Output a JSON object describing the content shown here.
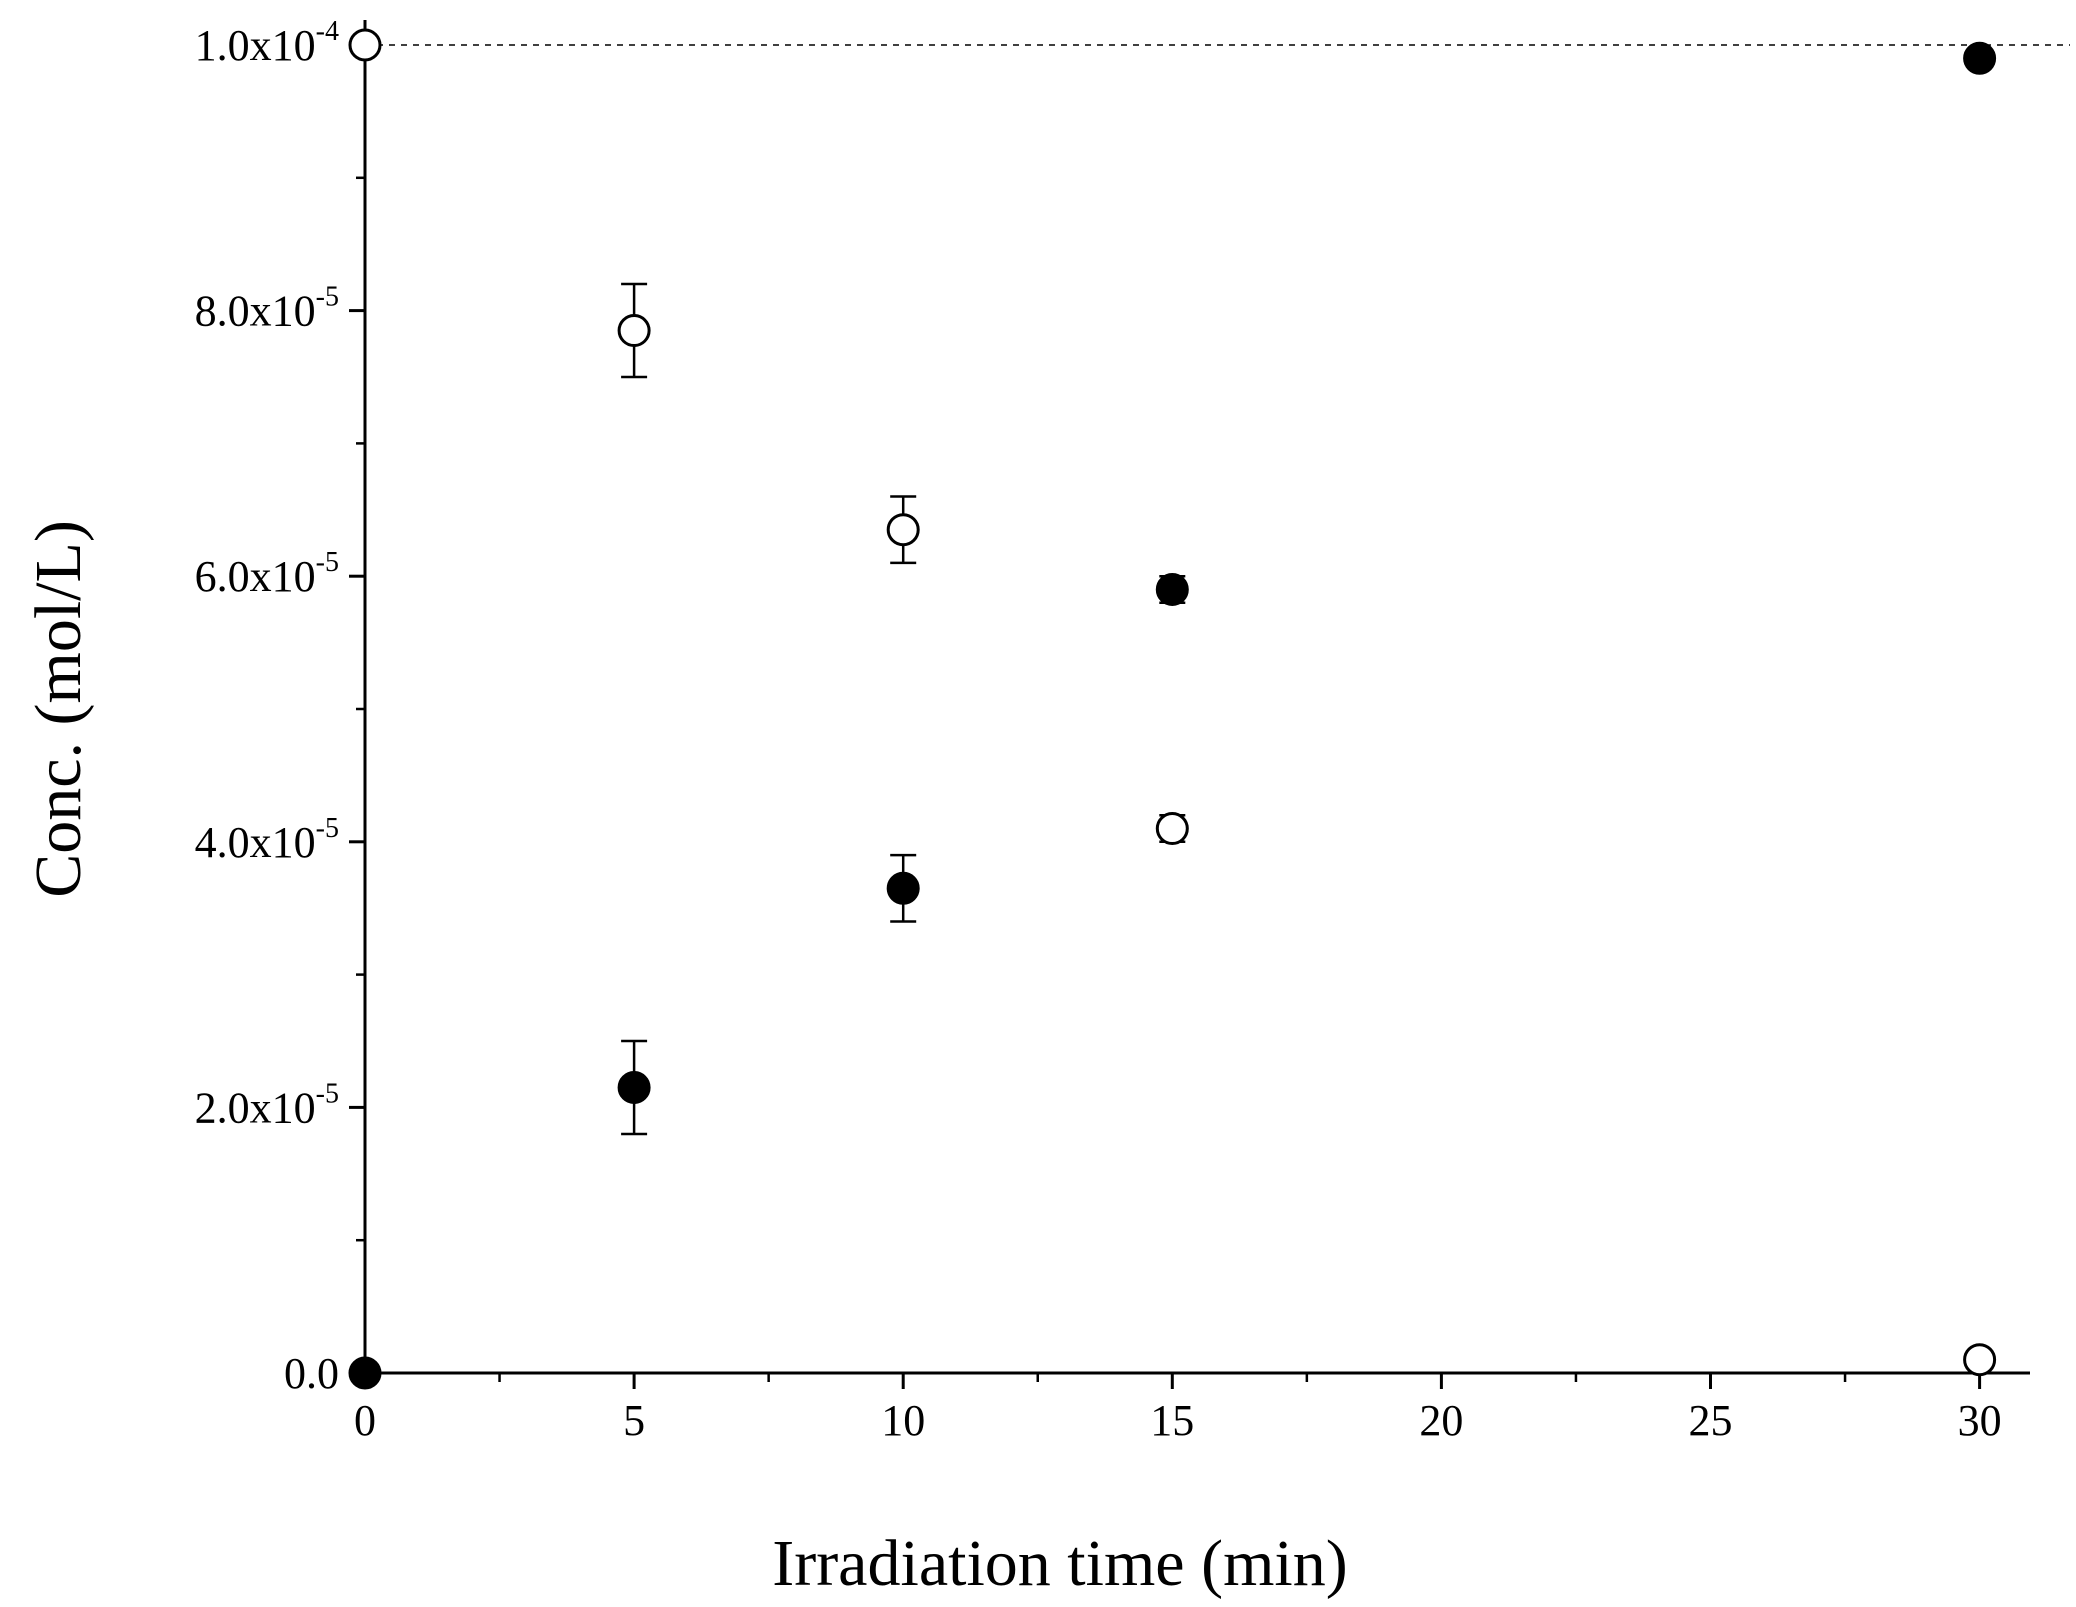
{
  "chart_data": {
    "type": "scatter",
    "title": "",
    "xlabel": "Irradiation time (min)",
    "ylabel": "Conc. (mol/L)",
    "xlim": [
      0,
      31
    ],
    "ylim": [
      0,
      0.0001
    ],
    "x_ticks": [
      {
        "value": 0,
        "label": "0"
      },
      {
        "value": 5,
        "label": "5"
      },
      {
        "value": 10,
        "label": "10"
      },
      {
        "value": 15,
        "label": "15"
      },
      {
        "value": 20,
        "label": "20"
      },
      {
        "value": 25,
        "label": "25"
      },
      {
        "value": 30,
        "label": "30"
      }
    ],
    "y_ticks": [
      {
        "value": 0,
        "mantissa": "0.0",
        "exponent": ""
      },
      {
        "value": 2e-05,
        "mantissa": "2.0x10",
        "exponent": "-5"
      },
      {
        "value": 4e-05,
        "mantissa": "4.0x10",
        "exponent": "-5"
      },
      {
        "value": 6e-05,
        "mantissa": "6.0x10",
        "exponent": "-5"
      },
      {
        "value": 8e-05,
        "mantissa": "8.0x10",
        "exponent": "-5"
      },
      {
        "value": 0.0001,
        "mantissa": "1.0x10",
        "exponent": "-4"
      }
    ],
    "reference_line": {
      "y": 0.0001,
      "style": "dashed"
    },
    "grid": false,
    "series": [
      {
        "name": "open circles",
        "marker": "open-circle",
        "points": [
          {
            "x": 0,
            "y": 0.0001,
            "err": 0
          },
          {
            "x": 5,
            "y": 7.85e-05,
            "err": 3.5e-06
          },
          {
            "x": 10,
            "y": 6.35e-05,
            "err": 2.5e-06
          },
          {
            "x": 15,
            "y": 4.1e-05,
            "err": 1e-06
          },
          {
            "x": 30,
            "y": 1e-06,
            "err": 0
          }
        ]
      },
      {
        "name": "filled circles",
        "marker": "filled-circle",
        "points": [
          {
            "x": 0,
            "y": 0,
            "err": 0
          },
          {
            "x": 5,
            "y": 2.15e-05,
            "err": 3.5e-06
          },
          {
            "x": 10,
            "y": 3.65e-05,
            "err": 2.5e-06
          },
          {
            "x": 15,
            "y": 5.9e-05,
            "err": 1e-06
          },
          {
            "x": 30,
            "y": 9.9e-05,
            "err": 0
          }
        ]
      }
    ]
  }
}
